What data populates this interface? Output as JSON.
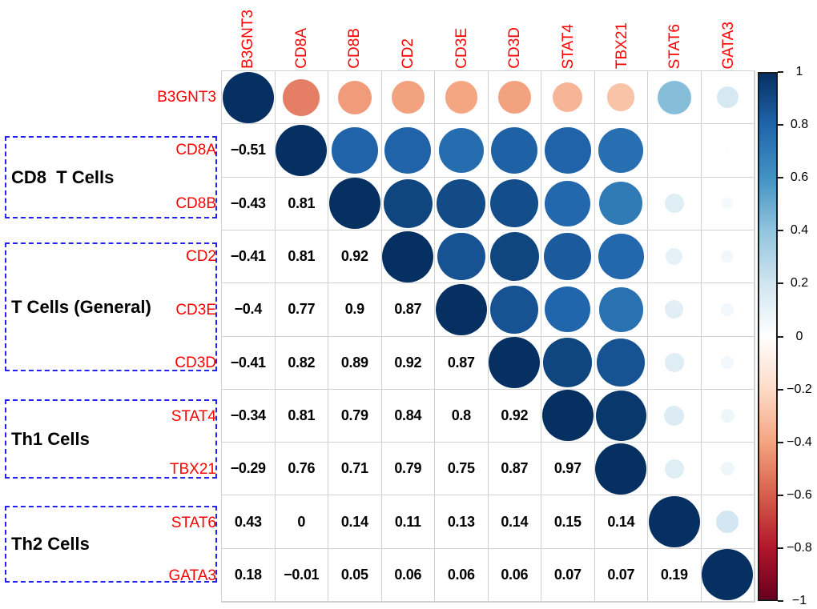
{
  "figure": {
    "background": "#ffffff",
    "gene_label_color": "#ff0000",
    "group_box_border_color": "#2323f0",
    "grid_line_color": "#d2d2d2",
    "groups": [
      {
        "label": "CD8  T Cells",
        "genes": [
          "CD8A",
          "CD8B"
        ]
      },
      {
        "label": "T Cells (General)",
        "genes": [
          "CD2",
          "CD3E",
          "CD3D"
        ]
      },
      {
        "label": "Th1 Cells",
        "genes": [
          "STAT4",
          "TBX21"
        ]
      },
      {
        "label": "Th2 Cells",
        "genes": [
          "STAT6",
          "GATA3"
        ]
      }
    ]
  },
  "chart_data": {
    "type": "heatmap",
    "subtype": "correlation-matrix-corrplot",
    "description": "Correlation matrix: lower triangle shows correlation coefficients as numbers, diagonal and upper triangle show circles sized/colored by correlation (blue positive, red negative).",
    "variables": [
      "B3GNT3",
      "CD8A",
      "CD8B",
      "CD2",
      "CD3E",
      "CD3D",
      "STAT4",
      "TBX21",
      "STAT6",
      "GATA3"
    ],
    "diagonal_value": 1,
    "matrix_lower_triangle": [
      [
        -0.51
      ],
      [
        -0.43,
        0.81
      ],
      [
        -0.41,
        0.81,
        0.92
      ],
      [
        -0.4,
        0.77,
        0.9,
        0.87
      ],
      [
        -0.41,
        0.82,
        0.89,
        0.92,
        0.87
      ],
      [
        -0.34,
        0.81,
        0.79,
        0.84,
        0.8,
        0.92
      ],
      [
        -0.29,
        0.76,
        0.71,
        0.79,
        0.75,
        0.87,
        0.97
      ],
      [
        0.43,
        0,
        0.14,
        0.11,
        0.13,
        0.14,
        0.15,
        0.14
      ],
      [
        0.18,
        -0.01,
        0.05,
        0.06,
        0.06,
        0.06,
        0.07,
        0.07,
        0.19
      ]
    ],
    "lower_triangle_labels": [
      [
        "−0.51"
      ],
      [
        "−0.43",
        "0.81"
      ],
      [
        "−0.41",
        "0.81",
        "0.92"
      ],
      [
        "−0.4",
        "0.77",
        "0.9",
        "0.87"
      ],
      [
        "−0.41",
        "0.82",
        "0.89",
        "0.92",
        "0.87"
      ],
      [
        "−0.34",
        "0.81",
        "0.79",
        "0.84",
        "0.8",
        "0.92"
      ],
      [
        "−0.29",
        "0.76",
        "0.71",
        "0.79",
        "0.75",
        "0.87",
        "0.97"
      ],
      [
        "0.43",
        "0",
        "0.14",
        "0.11",
        "0.13",
        "0.14",
        "0.15",
        "0.14"
      ],
      [
        "0.18",
        "−0.01",
        "0.05",
        "0.06",
        "0.06",
        "0.06",
        "0.07",
        "0.07",
        "0.19"
      ]
    ],
    "colormap_stops_neg_to_pos": [
      "#67001F",
      "#B2182B",
      "#D6604D",
      "#F4A582",
      "#FDDBC7",
      "#FFFFFF",
      "#D1E5F0",
      "#92C5DE",
      "#4393C3",
      "#2166AC",
      "#053061"
    ],
    "colorbar": {
      "position": "right",
      "min": -1,
      "max": 1,
      "tick_labels": [
        "1",
        "0.8",
        "0.6",
        "0.4",
        "0.2",
        "0",
        "−0.2",
        "−0.4",
        "−0.6",
        "−0.8",
        "−1"
      ]
    }
  }
}
